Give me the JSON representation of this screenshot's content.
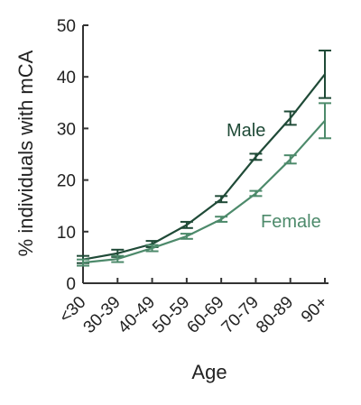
{
  "chart_data": {
    "type": "line",
    "categories": [
      "<30",
      "30-39",
      "40-49",
      "50-59",
      "60-69",
      "70-79",
      "80-89",
      "90+"
    ],
    "xlabel": "Age",
    "ylabel": "% individuals with mCA",
    "ylim": [
      0,
      50
    ],
    "yticks": [
      "0",
      "10",
      "20",
      "30",
      "40",
      "50"
    ],
    "grid": false,
    "series": [
      {
        "name": "Male",
        "color": "#1f4a37",
        "values": [
          4.6,
          5.8,
          7.6,
          11.3,
          16.3,
          24.5,
          32.0,
          40.5
        ],
        "error": [
          0.7,
          0.7,
          0.6,
          0.6,
          0.6,
          0.6,
          1.3,
          4.6
        ]
      },
      {
        "name": "Female",
        "color": "#4d8a6b",
        "values": [
          4.0,
          4.7,
          6.8,
          9.1,
          12.4,
          17.4,
          24.0,
          31.5
        ],
        "error": [
          0.6,
          0.6,
          0.6,
          0.5,
          0.5,
          0.5,
          0.8,
          3.4
        ]
      }
    ]
  }
}
